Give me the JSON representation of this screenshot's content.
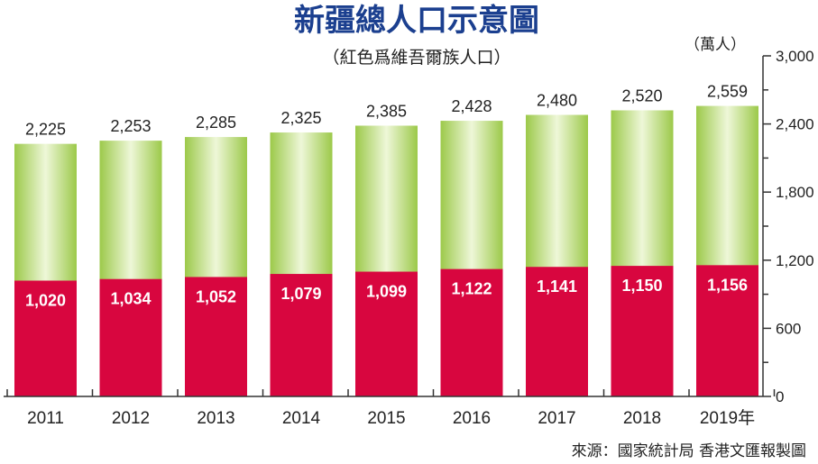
{
  "colors": {
    "title": "#1b3f8f",
    "uyghur": "#d8063f",
    "total_light": "#eef7d8",
    "total_dark": "#9cc94a"
  },
  "source": "來源：國家統計局 香港文匯報製圖",
  "chart_data": {
    "type": "bar",
    "title": "新疆總人口示意圖",
    "subtitle": "（紅色爲維吾爾族人口）",
    "ylabel": "（萬人）",
    "ylim": [
      0,
      3000
    ],
    "yticks": [
      0,
      600,
      1200,
      1800,
      2400,
      3000
    ],
    "ytick_labels": [
      "0",
      "600",
      "1,200",
      "1,800",
      "2,400",
      "3,000"
    ],
    "categories": [
      "2011",
      "2012",
      "2013",
      "2014",
      "2015",
      "2016",
      "2017",
      "2018",
      "2019年"
    ],
    "series": [
      {
        "values": [
          2225,
          2253,
          2285,
          2325,
          2385,
          2428,
          2480,
          2520,
          2559
        ],
        "labels": [
          "2,225",
          "2,253",
          "2,285",
          "2,325",
          "2,385",
          "2,428",
          "2,480",
          "2,520",
          "2,559"
        ]
      },
      {
        "values": [
          1020,
          1034,
          1052,
          1079,
          1099,
          1122,
          1141,
          1150,
          1156
        ],
        "labels": [
          "1,020",
          "1,034",
          "1,052",
          "1,079",
          "1,099",
          "1,122",
          "1,141",
          "1,150",
          "1,156"
        ]
      }
    ]
  }
}
